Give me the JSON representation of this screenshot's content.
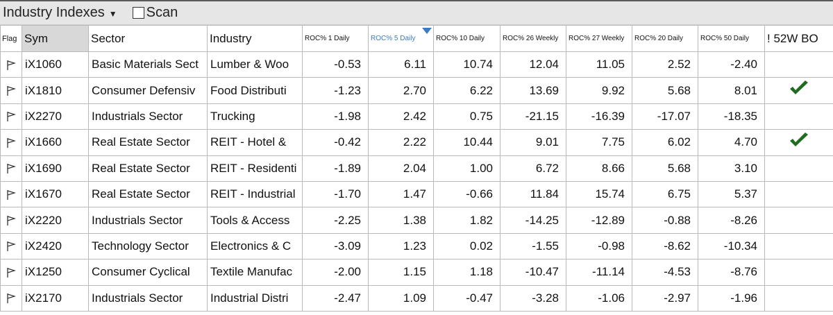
{
  "titlebar": {
    "title": "Industry Indexes",
    "scan_label": "Scan",
    "scan_checked": false
  },
  "columns": [
    {
      "key": "flag",
      "label": "Flag"
    },
    {
      "key": "sym",
      "label": "Sym"
    },
    {
      "key": "sector",
      "label": "Sector"
    },
    {
      "key": "industry",
      "label": "Industry"
    },
    {
      "key": "roc1",
      "label": "ROC% 1 Daily"
    },
    {
      "key": "roc5",
      "label": "ROC% 5 Daily",
      "sorted": "desc"
    },
    {
      "key": "roc10",
      "label": "ROC% 10 Daily"
    },
    {
      "key": "roc26w",
      "label": "ROC% 26 Weekly"
    },
    {
      "key": "roc27w",
      "label": "ROC% 27 Weekly"
    },
    {
      "key": "roc20",
      "label": "ROC% 20 Daily"
    },
    {
      "key": "roc50",
      "label": "ROC% 50 Daily"
    },
    {
      "key": "bo52w",
      "label": "! 52W BO"
    }
  ],
  "rows": [
    {
      "sym": "iX1060",
      "sector": "Basic Materials Sect",
      "industry": "Lumber & Woo",
      "roc1": "-0.53",
      "roc5": "6.11",
      "roc10": "10.74",
      "roc26w": "12.04",
      "roc27w": "11.05",
      "roc20": "2.52",
      "roc50": "-2.40",
      "bo52w": false
    },
    {
      "sym": "iX1810",
      "sector": "Consumer Defensiv",
      "industry": "Food Distributi",
      "roc1": "-1.23",
      "roc5": "2.70",
      "roc10": "6.22",
      "roc26w": "13.69",
      "roc27w": "9.92",
      "roc20": "5.68",
      "roc50": "8.01",
      "bo52w": true
    },
    {
      "sym": "iX2270",
      "sector": "Industrials Sector",
      "industry": "Trucking",
      "roc1": "-1.98",
      "roc5": "2.42",
      "roc10": "0.75",
      "roc26w": "-21.15",
      "roc27w": "-16.39",
      "roc20": "-17.07",
      "roc50": "-18.35",
      "bo52w": false
    },
    {
      "sym": "iX1660",
      "sector": "Real Estate Sector",
      "industry": "REIT - Hotel &",
      "roc1": "-0.42",
      "roc5": "2.22",
      "roc10": "10.44",
      "roc26w": "9.01",
      "roc27w": "7.75",
      "roc20": "6.02",
      "roc50": "4.70",
      "bo52w": true
    },
    {
      "sym": "iX1690",
      "sector": "Real Estate Sector",
      "industry": "REIT - Residenti",
      "roc1": "-1.89",
      "roc5": "2.04",
      "roc10": "1.00",
      "roc26w": "6.72",
      "roc27w": "8.66",
      "roc20": "5.68",
      "roc50": "3.10",
      "bo52w": false
    },
    {
      "sym": "iX1670",
      "sector": "Real Estate Sector",
      "industry": "REIT - Industrial",
      "roc1": "-1.70",
      "roc5": "1.47",
      "roc10": "-0.66",
      "roc26w": "11.84",
      "roc27w": "15.74",
      "roc20": "6.75",
      "roc50": "5.37",
      "bo52w": false
    },
    {
      "sym": "iX2220",
      "sector": "Industrials Sector",
      "industry": "Tools & Access",
      "roc1": "-2.25",
      "roc5": "1.38",
      "roc10": "1.82",
      "roc26w": "-14.25",
      "roc27w": "-12.89",
      "roc20": "-0.88",
      "roc50": "-8.26",
      "bo52w": false
    },
    {
      "sym": "iX2420",
      "sector": "Technology Sector",
      "industry": "Electronics & C",
      "roc1": "-3.09",
      "roc5": "1.23",
      "roc10": "0.02",
      "roc26w": "-1.55",
      "roc27w": "-0.98",
      "roc20": "-8.62",
      "roc50": "-10.34",
      "bo52w": false
    },
    {
      "sym": "iX1250",
      "sector": "Consumer Cyclical",
      "industry": "Textile Manufac",
      "roc1": "-2.00",
      "roc5": "1.15",
      "roc10": "1.18",
      "roc26w": "-10.47",
      "roc27w": "-11.14",
      "roc20": "-4.53",
      "roc50": "-8.76",
      "bo52w": false
    },
    {
      "sym": "iX2170",
      "sector": "Industrials Sector",
      "industry": "Industrial Distri",
      "roc1": "-2.47",
      "roc5": "1.09",
      "roc10": "-0.47",
      "roc26w": "-3.28",
      "roc27w": "-1.06",
      "roc20": "-2.97",
      "roc50": "-1.96",
      "bo52w": false
    }
  ],
  "colors": {
    "check": "#1f6b1f",
    "sort_accent": "#3b7bc4"
  },
  "icons": {
    "flag": "flag-outline-icon",
    "check": "checkmark-icon",
    "dropdown": "caret-down-icon",
    "sort": "sort-descending-icon"
  }
}
